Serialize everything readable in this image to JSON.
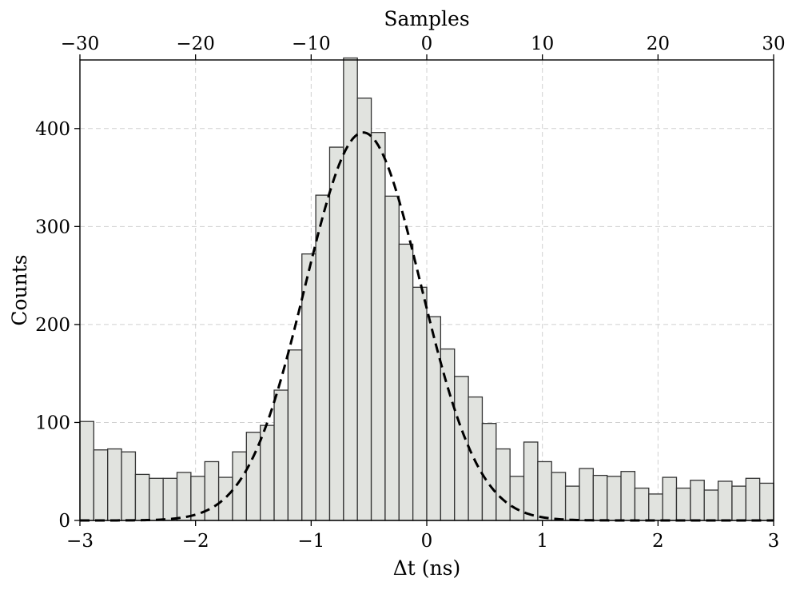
{
  "chart_data": {
    "type": "bar",
    "xlabel": "Δt (ns)",
    "ylabel": "Counts",
    "secondary_xlabel": "Samples",
    "xlim": [
      -3,
      3
    ],
    "ylim": [
      0,
      470
    ],
    "secondary_xlim": [
      -30,
      30
    ],
    "grid": true,
    "bin_edges_start": -3.0,
    "bin_width": 0.12,
    "values": [
      101,
      72,
      73,
      70,
      47,
      43,
      43,
      49,
      45,
      60,
      44,
      70,
      90,
      97,
      133,
      174,
      272,
      332,
      381,
      472,
      431,
      396,
      331,
      282,
      238,
      208,
      175,
      147,
      126,
      99,
      73,
      45,
      80,
      60,
      49,
      35,
      53,
      46,
      45,
      50,
      33,
      27,
      44,
      33,
      41,
      31,
      40,
      35,
      43,
      38
    ],
    "fit": {
      "type": "gaussian",
      "style": "dashed",
      "amplitude": 396,
      "mean": -0.55,
      "sigma": 0.5
    },
    "x_ticks": [
      "−3",
      "−2",
      "−1",
      "0",
      "1",
      "2",
      "3"
    ],
    "x_tick_values": [
      -3,
      -2,
      -1,
      0,
      1,
      2,
      3
    ],
    "y_ticks": [
      "0",
      "100",
      "200",
      "300",
      "400"
    ],
    "y_tick_values": [
      0,
      100,
      200,
      300,
      400
    ],
    "top_ticks": [
      "−30",
      "−20",
      "−10",
      "0",
      "10",
      "20",
      "30"
    ],
    "top_tick_values": [
      -30,
      -20,
      -10,
      0,
      10,
      20,
      30
    ]
  }
}
